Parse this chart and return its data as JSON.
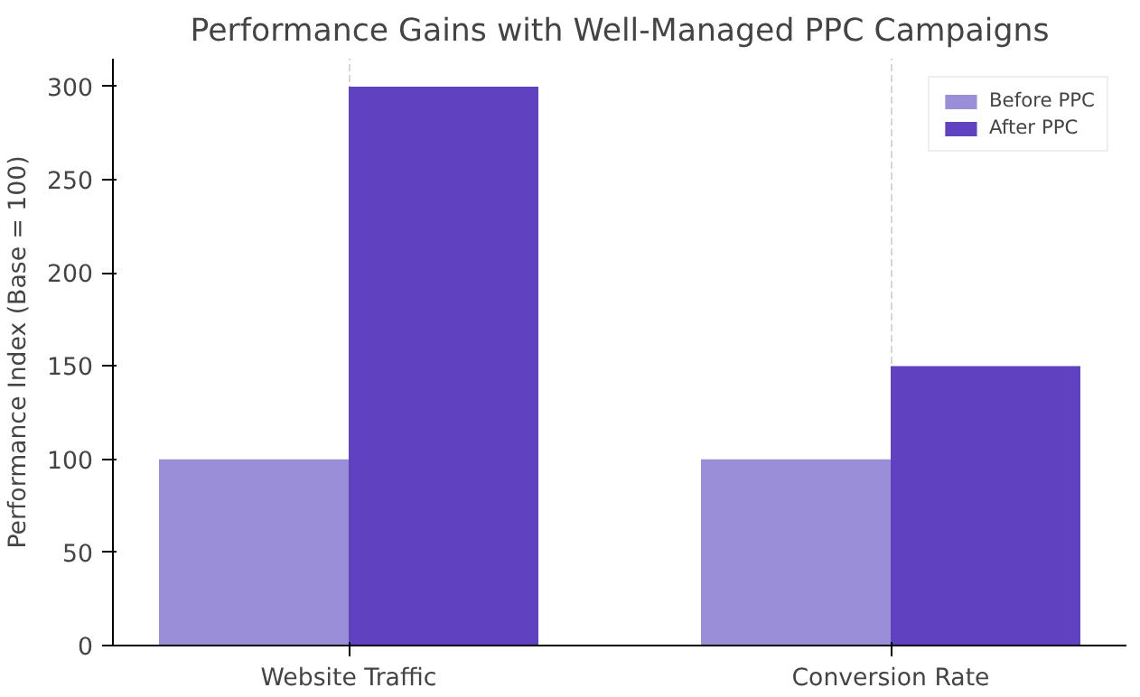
{
  "chart_data": {
    "type": "bar",
    "title": "Performance Gains with Well-Managed PPC Campaigns",
    "ylabel": "Performance Index (Base = 100)",
    "categories": [
      "Website Traffic",
      "Conversion Rate"
    ],
    "series": [
      {
        "name": "Before PPC",
        "color": "#9b8ed9",
        "values": [
          100,
          100
        ]
      },
      {
        "name": "After PPC",
        "color": "#6042c0",
        "values": [
          300,
          150
        ]
      }
    ],
    "ylim": [
      0,
      315
    ],
    "yticks": [
      0,
      50,
      100,
      150,
      200,
      250,
      300
    ],
    "grid": "x",
    "legend": "top right"
  }
}
